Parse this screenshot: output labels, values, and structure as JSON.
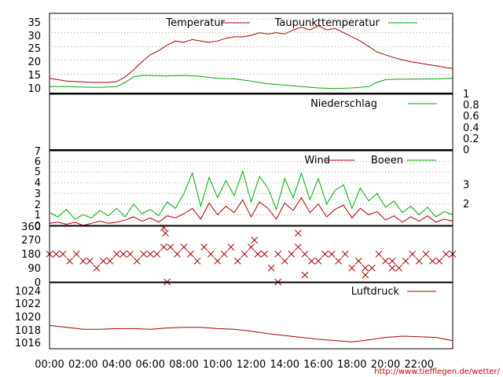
{
  "colors": {
    "red": "#aa0000",
    "green": "#00aa00",
    "axis": "#000000",
    "grid": "#999999",
    "credit": "#cc0000"
  },
  "credit": "http://www.tiefflegen.de/wetter/",
  "chart_data": [
    {
      "type": "line",
      "x_unit": "hours",
      "xlim": [
        0,
        24
      ],
      "ylim": [
        8,
        37
      ],
      "yticks": [
        "10",
        "15",
        "20",
        "25",
        "30",
        "35"
      ],
      "grid": "horizontal dotted",
      "legend_position": "top",
      "series": [
        {
          "name": "Temperatur",
          "color": "red",
          "x": [
            0,
            0.5,
            1,
            1.5,
            2,
            2.5,
            3,
            3.5,
            4,
            4.5,
            5,
            5.5,
            6,
            6.5,
            7,
            7.5,
            8,
            8.5,
            9,
            9.5,
            10,
            10.5,
            11,
            11.5,
            12,
            12.5,
            13,
            13.5,
            14,
            14.5,
            15,
            15.5,
            16,
            16.5,
            17,
            17.5,
            18,
            18.5,
            19,
            19.5,
            20,
            20.5,
            21,
            21.5,
            22,
            22.5,
            23,
            23.5,
            24
          ],
          "y": [
            13.5,
            13,
            12.5,
            12.3,
            12.2,
            12,
            12,
            12,
            12.3,
            14,
            16.5,
            19.5,
            22,
            23.5,
            25.5,
            27,
            26.5,
            27.5,
            27,
            26.5,
            27,
            28,
            28.5,
            28.5,
            29,
            30,
            29.5,
            30,
            29.5,
            31,
            32,
            31,
            32.5,
            31,
            31.5,
            30,
            28.5,
            27,
            25,
            23,
            22,
            21,
            20.2,
            19.5,
            19,
            18.5,
            18,
            17.5,
            17
          ]
        },
        {
          "name": "Taupunkttemperatur",
          "color": "green",
          "x": [
            0,
            1,
            2,
            3,
            4,
            4.5,
            5,
            5.5,
            6,
            7,
            8,
            9,
            10,
            11,
            12,
            13,
            14,
            15,
            16,
            17,
            18,
            19,
            19.5,
            20,
            21,
            22,
            23,
            24
          ],
          "y": [
            10.5,
            10.5,
            10.3,
            10.2,
            10.5,
            12,
            14,
            14.5,
            14.5,
            14.3,
            14.5,
            14.2,
            13.5,
            13.3,
            12.5,
            11.5,
            11,
            10.5,
            10,
            9.8,
            10,
            10.5,
            12,
            13,
            13.2,
            13.2,
            13.3,
            13.5
          ]
        }
      ]
    },
    {
      "type": "line",
      "x_unit": "hours",
      "xlim": [
        0,
        24
      ],
      "ylim": [
        0,
        1
      ],
      "yticks": [
        "0",
        "0.2",
        "0.4",
        "0.6",
        "0.8",
        "1"
      ],
      "legend_position": "top",
      "series": [
        {
          "name": "Niederschlag",
          "color": "green",
          "x": [
            0,
            24
          ],
          "y": [
            0,
            0
          ]
        }
      ]
    },
    {
      "type": "line",
      "x_unit": "hours",
      "xlim": [
        0,
        24
      ],
      "ylim": [
        0,
        7
      ],
      "yticks": [
        "0",
        "1",
        "2",
        "3",
        "4",
        "5",
        "6",
        "7"
      ],
      "right_ticks": [
        {
          "label": "2",
          "value": 2
        },
        {
          "label": "3",
          "value": 3.8
        }
      ],
      "grid": "horizontal dotted",
      "legend_position": "top",
      "series": [
        {
          "name": "Wind",
          "color": "red",
          "x": [
            0,
            0.5,
            1,
            1.5,
            2,
            2.5,
            3,
            3.5,
            4,
            4.5,
            5,
            5.5,
            6,
            6.5,
            7,
            7.5,
            8,
            8.5,
            9,
            9.5,
            10,
            10.5,
            11,
            11.5,
            12,
            12.5,
            13,
            13.5,
            14,
            14.5,
            15,
            15.5,
            16,
            16.5,
            17,
            17.5,
            18,
            18.5,
            19,
            19.5,
            20,
            20.5,
            21,
            21.5,
            22,
            22.5,
            23,
            23.5,
            24
          ],
          "y": [
            0.2,
            0.3,
            0.1,
            0.3,
            0,
            0.2,
            0.4,
            0.2,
            0.3,
            0.5,
            0.8,
            0.4,
            0.7,
            0.3,
            0.9,
            0.7,
            1.1,
            1.6,
            0.6,
            2.1,
            1.0,
            1.8,
            1.2,
            2.4,
            0.8,
            2.2,
            1.6,
            0.6,
            2.1,
            1.4,
            2.6,
            1.2,
            2.0,
            0.8,
            1.5,
            1.9,
            0.7,
            1.6,
            1.0,
            1.3,
            0.5,
            0.9,
            0.3,
            0.8,
            0.4,
            0.9,
            0.3,
            0.6,
            0.4
          ]
        },
        {
          "name": "Boeen",
          "color": "green",
          "x": [
            0,
            0.5,
            1,
            1.5,
            2,
            2.5,
            3,
            3.5,
            4,
            4.5,
            5,
            5.5,
            6,
            6.5,
            7,
            7.5,
            8,
            8.5,
            9,
            9.5,
            10,
            10.5,
            11,
            11.5,
            12,
            12.5,
            13,
            13.5,
            14,
            14.5,
            15,
            15.5,
            16,
            16.5,
            17,
            17.5,
            18,
            18.5,
            19,
            19.5,
            20,
            20.5,
            21,
            21.5,
            22,
            22.5,
            23,
            23.5,
            24
          ],
          "y": [
            1.2,
            0.8,
            1.5,
            0.6,
            1.0,
            0.7,
            1.4,
            0.9,
            1.6,
            0.8,
            2.0,
            1.1,
            1.5,
            0.9,
            2.2,
            1.6,
            3.0,
            4.9,
            1.8,
            4.5,
            2.6,
            4.2,
            2.8,
            5.1,
            2.2,
            4.6,
            3.5,
            1.5,
            4.4,
            2.6,
            4.9,
            2.4,
            4.4,
            2.0,
            3.3,
            3.8,
            1.6,
            3.5,
            2.3,
            3.0,
            1.7,
            2.3,
            1.2,
            1.8,
            1.0,
            1.7,
            0.8,
            1.3,
            1.0
          ]
        }
      ]
    },
    {
      "type": "scatter",
      "x_unit": "hours",
      "xlim": [
        0,
        24
      ],
      "ylim": [
        0,
        360
      ],
      "yticks": [
        "0",
        "90",
        "180",
        "270",
        "360"
      ],
      "marker": "x",
      "series": [
        {
          "color": "red",
          "x": [
            0,
            0.4,
            0.8,
            1.2,
            1.6,
            2.0,
            2.4,
            2.8,
            3.2,
            3.6,
            4.0,
            4.4,
            4.8,
            5.2,
            5.6,
            6.0,
            6.4,
            6.8,
            7.2,
            7.6,
            8.0,
            8.4,
            8.8,
            9.2,
            9.6,
            10.0,
            10.4,
            10.8,
            11.2,
            11.6,
            12.0,
            12.4,
            12.8,
            13.2,
            13.6,
            14.0,
            14.4,
            14.8,
            15.2,
            15.6,
            16.0,
            16.4,
            16.8,
            17.2,
            17.6,
            18.0,
            18.4,
            18.8,
            19.2,
            19.6,
            20.0,
            20.4,
            20.8,
            21.2,
            21.6,
            22.0,
            22.4,
            22.8,
            23.2,
            23.6,
            24.0,
            6.8,
            7.0,
            12.2,
            14.8,
            13.6,
            6.9,
            15.2,
            18.8,
            20.4
          ],
          "y": [
            180,
            180,
            180,
            135,
            180,
            135,
            135,
            90,
            135,
            135,
            180,
            180,
            180,
            135,
            180,
            180,
            180,
            225,
            225,
            180,
            225,
            180,
            135,
            225,
            180,
            135,
            180,
            225,
            135,
            180,
            225,
            180,
            180,
            90,
            180,
            135,
            180,
            225,
            180,
            135,
            135,
            180,
            180,
            135,
            180,
            90,
            135,
            90,
            90,
            180,
            135,
            135,
            90,
            135,
            180,
            135,
            180,
            135,
            135,
            180,
            180,
            350,
            0,
            270,
            315,
            0,
            315,
            45,
            45,
            90
          ]
        }
      ]
    },
    {
      "type": "line",
      "x_unit": "hours",
      "xlim": [
        0,
        24
      ],
      "ylim": [
        1014.8,
        1025.3
      ],
      "yticks": [
        "1016",
        "1018",
        "1020",
        "1022",
        "1024"
      ],
      "xticks": [
        "00:00",
        "02:00",
        "04:00",
        "06:00",
        "08:00",
        "10:00",
        "12:00",
        "14:00",
        "16:00",
        "18:00",
        "20:00",
        "22:00"
      ],
      "legend_position": "top",
      "series": [
        {
          "name": "Luftdruck",
          "color": "red",
          "x": [
            0,
            1,
            2,
            3,
            4,
            5,
            6,
            7,
            8,
            9,
            10,
            11,
            12,
            13,
            14,
            15,
            16,
            17,
            18,
            19,
            20,
            21,
            22,
            23,
            24
          ],
          "y": [
            1018.5,
            1018.2,
            1017.9,
            1017.9,
            1018.0,
            1018.0,
            1017.9,
            1018.1,
            1018.2,
            1018.2,
            1018.0,
            1017.9,
            1017.6,
            1017.2,
            1016.9,
            1016.6,
            1016.3,
            1016.1,
            1015.9,
            1016.2,
            1016.6,
            1016.8,
            1016.7,
            1016.6,
            1016.1
          ]
        }
      ]
    }
  ]
}
